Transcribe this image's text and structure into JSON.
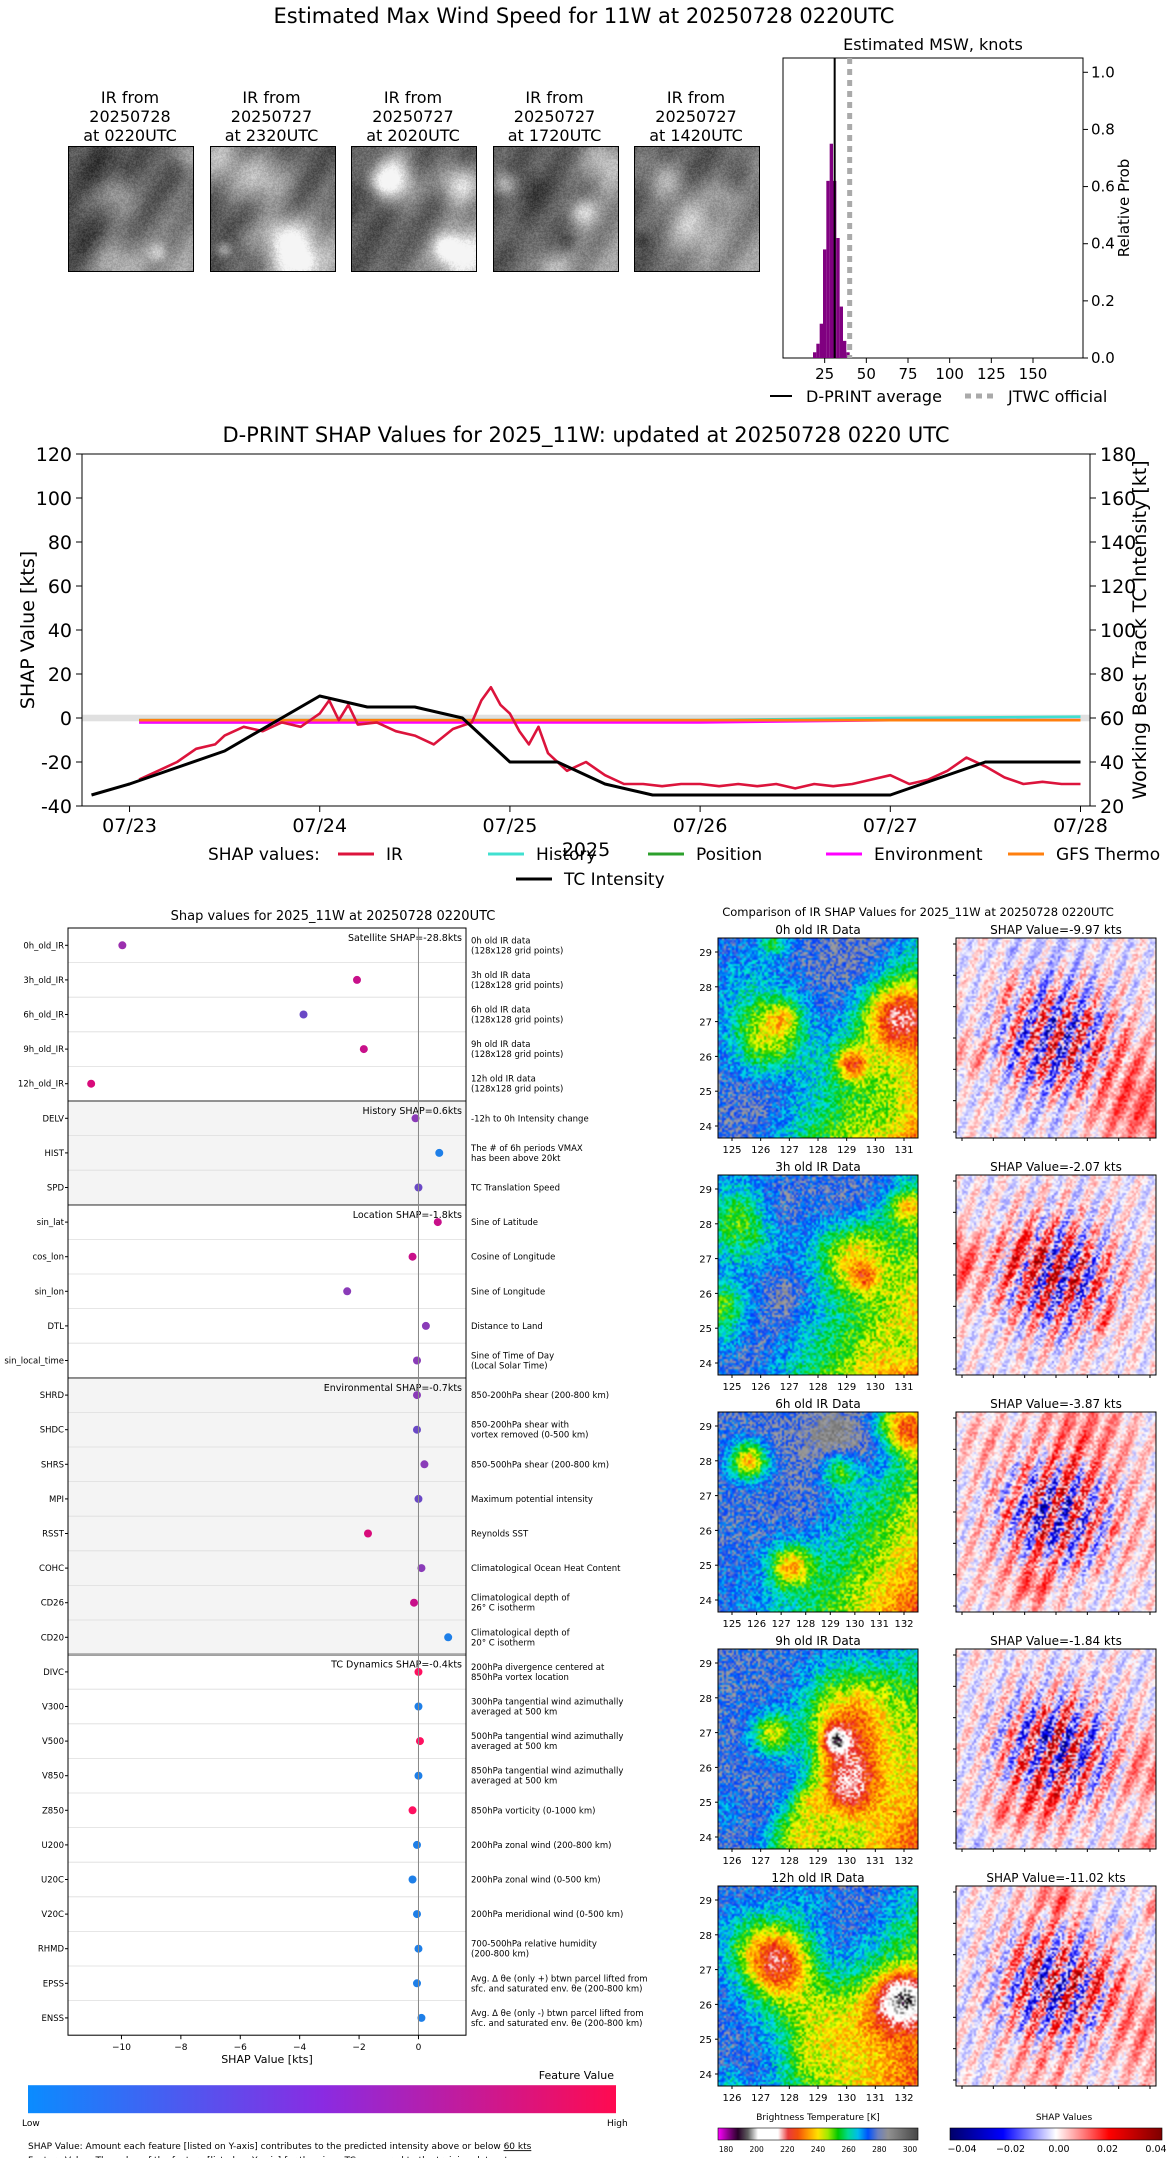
{
  "page": {
    "main_title": "Estimated Max Wind Speed for 11W at 20250728 0220UTC"
  },
  "ir_panels": [
    {
      "line1": "IR from",
      "line2": "20250728",
      "line3": "at 0220UTC",
      "seed": 11
    },
    {
      "line1": "IR from",
      "line2": "20250727",
      "line3": "at 2320UTC",
      "seed": 22
    },
    {
      "line1": "IR from",
      "line2": "20250727",
      "line3": "at 2020UTC",
      "seed": 33
    },
    {
      "line1": "IR from",
      "line2": "20250727",
      "line3": "at 1720UTC",
      "seed": 44
    },
    {
      "line1": "IR from",
      "line2": "20250727",
      "line3": "at 1420UTC",
      "seed": 55
    }
  ],
  "chart_data": [
    {
      "id": "msw_histogram",
      "type": "bar",
      "title": "Estimated MSW, knots",
      "ylabel": "Relative Prob",
      "xlim": [
        0,
        180
      ],
      "ylim": [
        0,
        1.05
      ],
      "xticks": [
        25,
        50,
        75,
        100,
        125,
        150
      ],
      "yticks": [
        0.0,
        0.2,
        0.4,
        0.6,
        0.8,
        1.0
      ],
      "bins_kt": [
        18,
        20,
        22,
        24,
        26,
        28,
        30,
        32,
        34,
        36,
        38
      ],
      "values": [
        0.02,
        0.05,
        0.12,
        0.38,
        0.62,
        0.75,
        0.62,
        0.42,
        0.18,
        0.06,
        0.02
      ],
      "dprint_average_kt": 31,
      "jtwc_official_kt": 40,
      "legend": [
        "D-PRINT average",
        "JTWC official"
      ],
      "colors": {
        "bars": "#800080",
        "average": "#000000",
        "jtwc": "#aaaaaa"
      }
    },
    {
      "id": "shap_timeseries",
      "type": "line",
      "title": "D-PRINT SHAP Values for 2025_11W: updated at 20250728 0220 UTC",
      "ylabel": "SHAP Value [kts]",
      "y2label": "Working Best Track TC Intensity [kt]",
      "xlabel": "2025",
      "ylim": [
        -40,
        120
      ],
      "y2lim": [
        20,
        180
      ],
      "xlim": [
        -0.25,
        5.05
      ],
      "xtick_labels": [
        "07/23",
        "07/24",
        "07/25",
        "07/26",
        "07/27",
        "07/28"
      ],
      "yticks": [
        -40,
        -20,
        0,
        20,
        40,
        60,
        80,
        100,
        120
      ],
      "y2ticks": [
        20,
        40,
        60,
        80,
        100,
        120,
        140,
        160,
        180
      ],
      "legend_title": "SHAP values:",
      "series": [
        {
          "name": "IR",
          "color": "#dc143c",
          "x": [
            0.05,
            0.15,
            0.25,
            0.35,
            0.45,
            0.5,
            0.6,
            0.7,
            0.8,
            0.9,
            1.0,
            1.05,
            1.1,
            1.15,
            1.2,
            1.3,
            1.4,
            1.5,
            1.6,
            1.7,
            1.8,
            1.85,
            1.9,
            1.95,
            2.0,
            2.05,
            2.1,
            2.15,
            2.2,
            2.3,
            2.4,
            2.5,
            2.6,
            2.7,
            2.8,
            2.9,
            3.0,
            3.1,
            3.2,
            3.3,
            3.4,
            3.5,
            3.6,
            3.7,
            3.8,
            3.9,
            4.0,
            4.1,
            4.2,
            4.3,
            4.4,
            4.5,
            4.6,
            4.7,
            4.8,
            4.9,
            5.0
          ],
          "y": [
            -28,
            -24,
            -20,
            -14,
            -12,
            -8,
            -4,
            -6,
            -2,
            -4,
            2,
            8,
            -1,
            6,
            -3,
            -2,
            -6,
            -8,
            -12,
            -5,
            -2,
            8,
            14,
            6,
            2,
            -6,
            -12,
            -4,
            -16,
            -24,
            -20,
            -26,
            -30,
            -30,
            -31,
            -30,
            -30,
            -31,
            -30,
            -31,
            -30,
            -32,
            -30,
            -31,
            -30,
            -28,
            -26,
            -30,
            -28,
            -24,
            -18,
            -22,
            -27,
            -30,
            -29,
            -30,
            -30
          ]
        },
        {
          "name": "History",
          "color": "#40e0d0",
          "x": [
            0.05,
            1,
            2,
            3,
            4,
            5
          ],
          "y": [
            -2,
            -2,
            -1,
            -1,
            0,
            0.6
          ]
        },
        {
          "name": "Position",
          "color": "#2ca02c",
          "x": [
            0.05,
            1,
            2,
            3,
            4,
            5
          ],
          "y": [
            -1,
            -1,
            -1,
            -1,
            -1,
            -1
          ]
        },
        {
          "name": "Environment",
          "color": "#ff00ff",
          "x": [
            0.05,
            1,
            2,
            3,
            4,
            5
          ],
          "y": [
            -2,
            -2,
            -2,
            -2,
            -1,
            -1
          ]
        },
        {
          "name": "GFS Thermo",
          "color": "#ff7f0e",
          "x": [
            0.05,
            1,
            2,
            3,
            4,
            5
          ],
          "y": [
            -1,
            -1,
            -1,
            -1,
            -1,
            -1
          ]
        },
        {
          "name": "TC Intensity",
          "color": "#000000",
          "axis": "right",
          "x": [
            -0.2,
            0.0,
            0.5,
            1.0,
            1.25,
            1.5,
            1.75,
            2.0,
            2.25,
            2.5,
            2.75,
            3.0,
            3.5,
            4.0,
            4.5,
            5.0
          ],
          "y": [
            25,
            30,
            45,
            70,
            65,
            65,
            60,
            40,
            40,
            30,
            25,
            25,
            25,
            25,
            40,
            40
          ]
        }
      ]
    },
    {
      "id": "shap_feature_strip",
      "type": "scatter",
      "title": "Shap values for 2025_11W at 20250728 0220UTC",
      "xlabel": "SHAP Value [kts]",
      "xlim": [
        -11.8,
        1.6
      ],
      "xticks": [
        -10,
        -8,
        -6,
        -4,
        -2,
        0
      ],
      "groups": [
        {
          "label": "Satellite SHAP=-28.8kts",
          "shaded": false,
          "start": 0,
          "count": 5
        },
        {
          "label": "History SHAP=0.6kts",
          "shaded": true,
          "start": 5,
          "count": 3
        },
        {
          "label": "Location SHAP=-1.8kts",
          "shaded": false,
          "start": 8,
          "count": 5
        },
        {
          "label": "Environmental SHAP=-0.7kts",
          "shaded": true,
          "start": 13,
          "count": 8
        },
        {
          "label": "TC Dynamics SHAP=-0.4kts",
          "shaded": false,
          "start": 21,
          "count": 11
        }
      ],
      "features": [
        {
          "name": "0h_old_IR",
          "desc1": "0h old IR data",
          "desc2": "(128x128 grid points)",
          "shap": -9.97,
          "color": "#9b2fae"
        },
        {
          "name": "3h_old_IR",
          "desc1": "3h old IR data",
          "desc2": "(128x128 grid points)",
          "shap": -2.07,
          "color": "#c8108a"
        },
        {
          "name": "6h_old_IR",
          "desc1": "6h old IR data",
          "desc2": "(128x128 grid points)",
          "shap": -3.87,
          "color": "#6a48c6"
        },
        {
          "name": "9h_old_IR",
          "desc1": "9h old IR data",
          "desc2": "(128x128 grid points)",
          "shap": -1.84,
          "color": "#c8108a"
        },
        {
          "name": "12h_old_IR",
          "desc1": "12h old IR data",
          "desc2": "(128x128 grid points)",
          "shap": -11.02,
          "color": "#d80a7a"
        },
        {
          "name": "DELV",
          "desc1": "-12h to 0h Intensity change",
          "desc2": "",
          "shap": -0.1,
          "color": "#8a3bb8"
        },
        {
          "name": "HIST",
          "desc1": "The # of 6h periods VMAX",
          "desc2": "has been above 20kt",
          "shap": 0.7,
          "color": "#1e7fe8"
        },
        {
          "name": "SPD",
          "desc1": "TC Translation Speed",
          "desc2": "",
          "shap": 0.0,
          "color": "#6a48c6"
        },
        {
          "name": "sin_lat",
          "desc1": "Sine of Latitude",
          "desc2": "",
          "shap": 0.65,
          "color": "#c8108a"
        },
        {
          "name": "cos_lon",
          "desc1": "Cosine of Longitude",
          "desc2": "",
          "shap": -0.2,
          "color": "#c8108a"
        },
        {
          "name": "sin_lon",
          "desc1": "Sine of Longitude",
          "desc2": "",
          "shap": -2.4,
          "color": "#8a3bb8"
        },
        {
          "name": "DTL",
          "desc1": "Distance to Land",
          "desc2": "",
          "shap": 0.25,
          "color": "#8a3bb8"
        },
        {
          "name": "sin_local_time",
          "desc1": "Sine of Time of Day",
          "desc2": "(Local Solar Time)",
          "shap": -0.05,
          "color": "#8a3bb8"
        },
        {
          "name": "SHRD",
          "desc1": "850-200hPa shear (200-800 km)",
          "desc2": "",
          "shap": -0.05,
          "color": "#8a3bb8"
        },
        {
          "name": "SHDC",
          "desc1": "850-200hPa shear with",
          "desc2": "vortex removed (0-500 km)",
          "shap": -0.05,
          "color": "#6a48c6"
        },
        {
          "name": "SHRS",
          "desc1": "850-500hPa shear (200-800 km)",
          "desc2": "",
          "shap": 0.2,
          "color": "#8a3bb8"
        },
        {
          "name": "MPI",
          "desc1": "Maximum potential intensity",
          "desc2": "",
          "shap": 0.0,
          "color": "#6a48c6"
        },
        {
          "name": "RSST",
          "desc1": "Reynolds SST",
          "desc2": "",
          "shap": -1.7,
          "color": "#d80a7a"
        },
        {
          "name": "COHC",
          "desc1": "Climatological Ocean Heat Content",
          "desc2": "",
          "shap": 0.1,
          "color": "#8a3bb8"
        },
        {
          "name": "CD26",
          "desc1": "Climatological depth of",
          "desc2": "26° C isotherm",
          "shap": -0.15,
          "color": "#c8108a"
        },
        {
          "name": "CD20",
          "desc1": "Climatological depth of",
          "desc2": "20° C isotherm",
          "shap": 1.0,
          "color": "#1e7fe8"
        },
        {
          "name": "DIVC",
          "desc1": "200hPa divergence centered at",
          "desc2": "850hPa vortex location",
          "shap": 0.0,
          "color": "#ff1060"
        },
        {
          "name": "V300",
          "desc1": "300hPa tangential wind azimuthally",
          "desc2": "averaged at 500 km",
          "shap": 0.0,
          "color": "#1e7fe8"
        },
        {
          "name": "V500",
          "desc1": "500hPa tangential wind azimuthally",
          "desc2": "averaged at 500 km",
          "shap": 0.05,
          "color": "#ff1060"
        },
        {
          "name": "V850",
          "desc1": "850hPa tangential wind azimuthally",
          "desc2": "averaged at 500 km",
          "shap": 0.0,
          "color": "#1e7fe8"
        },
        {
          "name": "Z850",
          "desc1": "850hPa vorticity (0-1000 km)",
          "desc2": "",
          "shap": -0.2,
          "color": "#ff1060"
        },
        {
          "name": "U200",
          "desc1": "200hPa zonal wind (200-800 km)",
          "desc2": "",
          "shap": -0.05,
          "color": "#1e7fe8"
        },
        {
          "name": "U20C",
          "desc1": "200hPa zonal wind (0-500 km)",
          "desc2": "",
          "shap": -0.2,
          "color": "#1e7fe8"
        },
        {
          "name": "V20C",
          "desc1": "200hPa meridional wind (0-500 km)",
          "desc2": "",
          "shap": -0.05,
          "color": "#1e7fe8"
        },
        {
          "name": "RHMD",
          "desc1": "700-500hPa relative humidity",
          "desc2": "(200-800 km)",
          "shap": 0.0,
          "color": "#1e7fe8"
        },
        {
          "name": "EPSS",
          "desc1": "Avg. Δ θe (only +) btwn parcel lifted from",
          "desc2": "sfc. and saturated env. θe (200-800 km)",
          "shap": -0.05,
          "color": "#1e7fe8"
        },
        {
          "name": "ENSS",
          "desc1": "Avg. Δ θe (only -) btwn parcel lifted from",
          "desc2": "sfc. and saturated env. θe (200-800 km)",
          "shap": 0.1,
          "color": "#1e7fe8"
        }
      ]
    }
  ],
  "feature_colorbar": {
    "title": "Feature Value",
    "low": "Low",
    "high": "High"
  },
  "footnotes": {
    "line1": "SHAP Value: Amount each feature [listed on Y-axis] contributes to the predicted intensity above or below ",
    "line1_link": "60 kts",
    "line2": "Feature Value: The value of the feature [listed on Y-axis] for the given TC compared to the training dataset"
  },
  "comparison": {
    "title": "Comparison of IR SHAP Values for 2025_11W at 20250728 0220UTC",
    "yticks": [
      "29",
      "28",
      "27",
      "26",
      "25",
      "24"
    ],
    "rows": [
      {
        "ir_title": "0h old IR Data",
        "shap_title": "SHAP Value=-9.97 kts",
        "xticks": [
          "125",
          "126",
          "127",
          "128",
          "129",
          "130",
          "131"
        ],
        "seed": 101
      },
      {
        "ir_title": "3h old IR Data",
        "shap_title": "SHAP Value=-2.07 kts",
        "xticks": [
          "125",
          "126",
          "127",
          "128",
          "129",
          "130",
          "131"
        ],
        "seed": 202
      },
      {
        "ir_title": "6h old IR Data",
        "shap_title": "SHAP Value=-3.87 kts",
        "xticks": [
          "125",
          "126",
          "127",
          "128",
          "129",
          "130",
          "131",
          "132"
        ],
        "seed": 303
      },
      {
        "ir_title": "9h old IR Data",
        "shap_title": "SHAP Value=-1.84 kts",
        "xticks": [
          "126",
          "127",
          "128",
          "129",
          "130",
          "131",
          "132"
        ],
        "seed": 404
      },
      {
        "ir_title": "12h old IR Data",
        "shap_title": "SHAP Value=-11.02 kts",
        "xticks": [
          "126",
          "127",
          "128",
          "129",
          "130",
          "131",
          "132"
        ],
        "seed": 505
      }
    ],
    "bt_colorbar": {
      "title": "Brightness Temperature [K]",
      "ticks": [
        "180",
        "200",
        "220",
        "240",
        "260",
        "280",
        "300"
      ]
    },
    "shap_colorbar": {
      "title": "SHAP Values",
      "ticks": [
        "−0.04",
        "−0.02",
        "0.00",
        "0.02",
        "0.04"
      ]
    }
  }
}
